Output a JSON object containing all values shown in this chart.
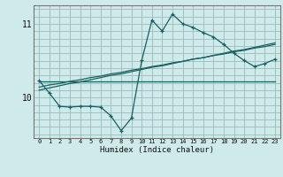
{
  "xlabel": "Humidex (Indice chaleur)",
  "bg_color": "#ceeaea",
  "line_color": "#1a6060",
  "grid_color": "#9bbcbc",
  "xlim": [
    -0.5,
    23.5
  ],
  "ylim": [
    9.45,
    11.25
  ],
  "yticks": [
    10,
    11
  ],
  "xticks": [
    0,
    1,
    2,
    3,
    4,
    5,
    6,
    7,
    8,
    9,
    10,
    11,
    12,
    13,
    14,
    15,
    16,
    17,
    18,
    19,
    20,
    21,
    22,
    23
  ],
  "curve_wavy_x": [
    0,
    1,
    2,
    3,
    4,
    5,
    6,
    7,
    8,
    9,
    10,
    11,
    12,
    13,
    14,
    15,
    16,
    17,
    18,
    19,
    20,
    21,
    22,
    23
  ],
  "curve_wavy_y": [
    10.23,
    10.06,
    9.88,
    9.87,
    9.88,
    9.88,
    9.87,
    9.75,
    9.55,
    9.72,
    10.5,
    11.05,
    10.9,
    11.13,
    11.0,
    10.95,
    10.88,
    10.82,
    10.72,
    10.6,
    10.5,
    10.42,
    10.46,
    10.52
  ],
  "line1_x": [
    0,
    1,
    2,
    3,
    4,
    5,
    6,
    7,
    8,
    9,
    10,
    11,
    12,
    13,
    14,
    15,
    16,
    17,
    18,
    19,
    20,
    21,
    22,
    23
  ],
  "line1_y": [
    10.14,
    10.17,
    10.19,
    10.22,
    10.24,
    10.27,
    10.29,
    10.32,
    10.34,
    10.37,
    10.39,
    10.42,
    10.44,
    10.47,
    10.49,
    10.52,
    10.54,
    10.57,
    10.59,
    10.62,
    10.64,
    10.67,
    10.69,
    10.72
  ],
  "line2_x": [
    0,
    1,
    2,
    3,
    4,
    5,
    6,
    7,
    8,
    9,
    10,
    11,
    12,
    13,
    14,
    15,
    16,
    17,
    18,
    19,
    20,
    21,
    22,
    23
  ],
  "line2_y": [
    10.1,
    10.13,
    10.16,
    10.19,
    10.21,
    10.24,
    10.27,
    10.3,
    10.32,
    10.35,
    10.38,
    10.41,
    10.43,
    10.46,
    10.49,
    10.52,
    10.54,
    10.57,
    10.6,
    10.63,
    10.65,
    10.68,
    10.71,
    10.74
  ],
  "line3_x": [
    0,
    1,
    2,
    3,
    4,
    5,
    6,
    7,
    8,
    9,
    10,
    11,
    12,
    13,
    14,
    15,
    16,
    17,
    18,
    19,
    20,
    21,
    22,
    23
  ],
  "line3_y": [
    10.22,
    10.22,
    10.22,
    10.22,
    10.22,
    10.22,
    10.22,
    10.22,
    10.22,
    10.22,
    10.22,
    10.22,
    10.22,
    10.22,
    10.22,
    10.22,
    10.22,
    10.22,
    10.22,
    10.22,
    10.22,
    10.22,
    10.22,
    10.22
  ]
}
